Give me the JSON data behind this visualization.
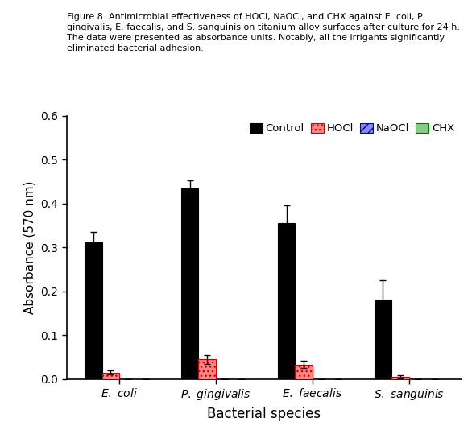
{
  "caption_bold": "Figure 8.",
  "caption_normal": " Antimicrobial effectiveness of HOCl, NaOCl, and CHX against ",
  "caption_italic1": "E. coli",
  "caption_rest": ", P.\ngingivalis, ",
  "caption_italic2": "E. faecalis",
  "caption_rest2": ", and ",
  "caption_italic3": "S. sanguinis",
  "caption_rest3": " on titanium alloy surfaces after culture for 24 h.\nThe data were presented as absorbance units. Notably, all the irrigants significantly\neliminated bacterial adhesion.",
  "categories": [
    "E. coli",
    "P. gingivalis",
    "E. faecalis",
    "S. sanguinis"
  ],
  "series_names": [
    "Control",
    "HOCl",
    "NaOCl",
    "CHX"
  ],
  "values": {
    "Control": [
      0.311,
      0.435,
      0.356,
      0.181
    ],
    "HOCl": [
      0.015,
      0.045,
      0.033,
      0.005
    ],
    "NaOCl": [
      0.0,
      0.0,
      0.0,
      0.0
    ],
    "CHX": [
      0.0,
      0.0,
      0.0,
      0.0
    ]
  },
  "errors": {
    "Control": [
      0.025,
      0.018,
      0.04,
      0.045
    ],
    "HOCl": [
      0.005,
      0.01,
      0.008,
      0.003
    ],
    "NaOCl": [
      0.0,
      0.0,
      0.0,
      0.0
    ],
    "CHX": [
      0.0,
      0.0,
      0.0,
      0.0
    ]
  },
  "bar_colors": {
    "Control": "#000000",
    "HOCl": "#FF8888",
    "NaOCl": "#8888FF",
    "CHX": "#88CC88"
  },
  "bar_hatches": {
    "Control": null,
    "HOCl": "...",
    "NaOCl": "///",
    "CHX": "==="
  },
  "bar_edgecolors": {
    "Control": "#000000",
    "HOCl": "#CC0000",
    "NaOCl": "#0000CC",
    "CHX": "#007700"
  },
  "legend_hatches": {
    "Control": null,
    "HOCl": "...",
    "NaOCl": "///",
    "CHX": "==="
  },
  "ylabel": "Absorbance (570 nm)",
  "xlabel": "Bacterial species",
  "ylim": [
    0,
    0.6
  ],
  "yticks": [
    0,
    0.1,
    0.2,
    0.3,
    0.4,
    0.5,
    0.6
  ],
  "bar_width": 0.18,
  "figsize": [
    5.91,
    5.29
  ],
  "dpi": 100,
  "capsize": 3
}
